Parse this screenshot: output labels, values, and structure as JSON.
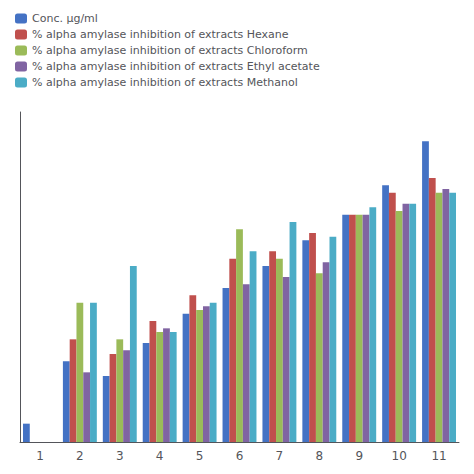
{
  "chart_data": {
    "type": "bar",
    "categories": [
      "1",
      "2",
      "3",
      "4",
      "5",
      "6",
      "7",
      "8",
      "9",
      "10",
      "11"
    ],
    "series": [
      {
        "name": "Conc. μg/ml",
        "color": "#4472C4",
        "values": [
          5,
          22,
          18,
          27,
          35,
          42,
          48,
          55,
          62,
          70,
          82
        ]
      },
      {
        "name": "% alpha amylase inhibition of extracts Hexane",
        "color": "#C0504D",
        "values": [
          0,
          28,
          24,
          33,
          40,
          50,
          52,
          57,
          62,
          68,
          72
        ]
      },
      {
        "name": "% alpha amylase inhibition of extracts Chloroform",
        "color": "#9BBB59",
        "values": [
          0,
          38,
          28,
          30,
          36,
          58,
          50,
          46,
          62,
          63,
          68
        ]
      },
      {
        "name": "% alpha amylase inhibition of extracts Ethyl acetate",
        "color": "#8064A2",
        "values": [
          0,
          19,
          25,
          31,
          37,
          43,
          45,
          49,
          62,
          65,
          69
        ]
      },
      {
        "name": "% alpha amylase inhibition of extracts Methanol",
        "color": "#4BACC6",
        "values": [
          0,
          38,
          48,
          30,
          38,
          52,
          60,
          56,
          64,
          65,
          68
        ]
      }
    ],
    "ylim": [
      0,
      90
    ],
    "grid": false,
    "legend": "upper left",
    "tick_labels": "x"
  }
}
